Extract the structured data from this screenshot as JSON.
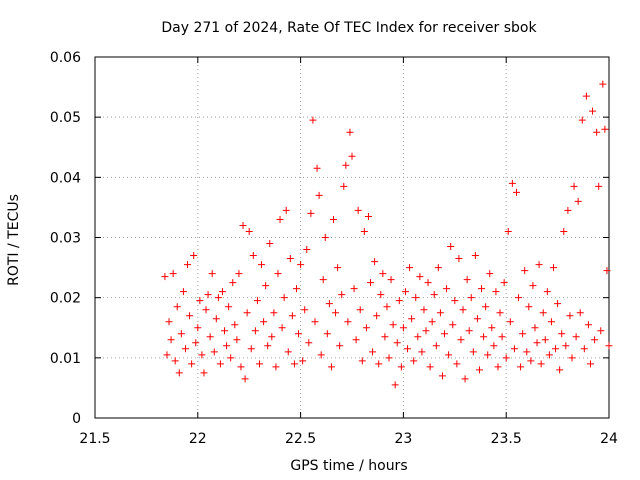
{
  "chart_data": {
    "type": "scatter",
    "title": "Day 271 of 2024, Rate Of TEC Index for receiver sbok",
    "xlabel": "GPS time / hours",
    "ylabel": "ROTI / TECUs",
    "xlim": [
      21.5,
      24
    ],
    "ylim": [
      0,
      0.06
    ],
    "xticks": [
      21.5,
      22,
      22.5,
      23,
      23.5,
      24
    ],
    "xtick_labels": [
      "21.5",
      "22",
      "22.5",
      "23",
      "23.5",
      "24"
    ],
    "yticks": [
      0,
      0.01,
      0.02,
      0.03,
      0.04,
      0.05,
      0.06
    ],
    "ytick_labels": [
      "0",
      "0.01",
      "0.02",
      "0.03",
      "0.04",
      "0.05",
      "0.06"
    ],
    "grid": true,
    "marker": "plus",
    "color": "#ff0000",
    "series": [
      {
        "name": "ROTI",
        "points": [
          [
            21.84,
            0.0235
          ],
          [
            21.85,
            0.0105
          ],
          [
            21.86,
            0.016
          ],
          [
            21.87,
            0.013
          ],
          [
            21.88,
            0.024
          ],
          [
            21.89,
            0.0095
          ],
          [
            21.9,
            0.0185
          ],
          [
            21.91,
            0.0075
          ],
          [
            21.92,
            0.014
          ],
          [
            21.93,
            0.021
          ],
          [
            21.94,
            0.0115
          ],
          [
            21.95,
            0.0255
          ],
          [
            21.96,
            0.017
          ],
          [
            21.97,
            0.009
          ],
          [
            21.98,
            0.027
          ],
          [
            21.99,
            0.0125
          ],
          [
            22.0,
            0.015
          ],
          [
            22.01,
            0.0195
          ],
          [
            22.02,
            0.0105
          ],
          [
            22.03,
            0.0075
          ],
          [
            22.04,
            0.018
          ],
          [
            22.05,
            0.0205
          ],
          [
            22.06,
            0.0135
          ],
          [
            22.07,
            0.024
          ],
          [
            22.08,
            0.011
          ],
          [
            22.09,
            0.0165
          ],
          [
            22.1,
            0.02
          ],
          [
            22.11,
            0.009
          ],
          [
            22.12,
            0.021
          ],
          [
            22.13,
            0.0145
          ],
          [
            22.14,
            0.012
          ],
          [
            22.15,
            0.0185
          ],
          [
            22.16,
            0.01
          ],
          [
            22.17,
            0.0225
          ],
          [
            22.18,
            0.0155
          ],
          [
            22.19,
            0.013
          ],
          [
            22.2,
            0.024
          ],
          [
            22.21,
            0.0085
          ],
          [
            22.22,
            0.032
          ],
          [
            22.23,
            0.0065
          ],
          [
            22.24,
            0.0175
          ],
          [
            22.25,
            0.031
          ],
          [
            22.26,
            0.0115
          ],
          [
            22.27,
            0.027
          ],
          [
            22.28,
            0.0145
          ],
          [
            22.29,
            0.0195
          ],
          [
            22.3,
            0.009
          ],
          [
            22.31,
            0.0255
          ],
          [
            22.32,
            0.016
          ],
          [
            22.33,
            0.022
          ],
          [
            22.34,
            0.012
          ],
          [
            22.35,
            0.029
          ],
          [
            22.36,
            0.0135
          ],
          [
            22.37,
            0.0175
          ],
          [
            22.38,
            0.0085
          ],
          [
            22.39,
            0.024
          ],
          [
            22.4,
            0.033
          ],
          [
            22.41,
            0.015
          ],
          [
            22.42,
            0.02
          ],
          [
            22.43,
            0.0345
          ],
          [
            22.44,
            0.011
          ],
          [
            22.45,
            0.0265
          ],
          [
            22.46,
            0.017
          ],
          [
            22.47,
            0.009
          ],
          [
            22.48,
            0.0215
          ],
          [
            22.49,
            0.014
          ],
          [
            22.5,
            0.0255
          ],
          [
            22.51,
            0.0095
          ],
          [
            22.52,
            0.018
          ],
          [
            22.53,
            0.028
          ],
          [
            22.54,
            0.0125
          ],
          [
            22.55,
            0.034
          ],
          [
            22.56,
            0.0495
          ],
          [
            22.57,
            0.016
          ],
          [
            22.58,
            0.0415
          ],
          [
            22.59,
            0.037
          ],
          [
            22.6,
            0.0105
          ],
          [
            22.61,
            0.023
          ],
          [
            22.62,
            0.03
          ],
          [
            22.63,
            0.014
          ],
          [
            22.64,
            0.019
          ],
          [
            22.65,
            0.0085
          ],
          [
            22.66,
            0.033
          ],
          [
            22.67,
            0.0175
          ],
          [
            22.68,
            0.025
          ],
          [
            22.69,
            0.012
          ],
          [
            22.7,
            0.0205
          ],
          [
            22.71,
            0.0385
          ],
          [
            22.72,
            0.042
          ],
          [
            22.73,
            0.016
          ],
          [
            22.74,
            0.0475
          ],
          [
            22.75,
            0.0435
          ],
          [
            22.76,
            0.0215
          ],
          [
            22.77,
            0.013
          ],
          [
            22.78,
            0.0345
          ],
          [
            22.79,
            0.018
          ],
          [
            22.8,
            0.0095
          ],
          [
            22.81,
            0.031
          ],
          [
            22.82,
            0.015
          ],
          [
            22.83,
            0.0335
          ],
          [
            22.84,
            0.0225
          ],
          [
            22.85,
            0.011
          ],
          [
            22.86,
            0.026
          ],
          [
            22.87,
            0.017
          ],
          [
            22.88,
            0.009
          ],
          [
            22.89,
            0.0205
          ],
          [
            22.9,
            0.024
          ],
          [
            22.91,
            0.0135
          ],
          [
            22.92,
            0.0185
          ],
          [
            22.93,
            0.01
          ],
          [
            22.94,
            0.023
          ],
          [
            22.95,
            0.0155
          ],
          [
            22.96,
            0.0055
          ],
          [
            22.97,
            0.0125
          ],
          [
            22.98,
            0.0195
          ],
          [
            22.99,
            0.0085
          ],
          [
            23.0,
            0.015
          ],
          [
            23.01,
            0.021
          ],
          [
            23.02,
            0.0115
          ],
          [
            23.03,
            0.025
          ],
          [
            23.04,
            0.0165
          ],
          [
            23.05,
            0.0095
          ],
          [
            23.06,
            0.02
          ],
          [
            23.07,
            0.0135
          ],
          [
            23.08,
            0.0235
          ],
          [
            23.09,
            0.011
          ],
          [
            23.1,
            0.018
          ],
          [
            23.11,
            0.0145
          ],
          [
            23.12,
            0.0225
          ],
          [
            23.13,
            0.0085
          ],
          [
            23.14,
            0.016
          ],
          [
            23.15,
            0.0205
          ],
          [
            23.16,
            0.012
          ],
          [
            23.17,
            0.025
          ],
          [
            23.18,
            0.0175
          ],
          [
            23.19,
            0.007
          ],
          [
            23.2,
            0.014
          ],
          [
            23.21,
            0.0215
          ],
          [
            23.22,
            0.0105
          ],
          [
            23.23,
            0.0285
          ],
          [
            23.24,
            0.0155
          ],
          [
            23.25,
            0.0195
          ],
          [
            23.26,
            0.009
          ],
          [
            23.27,
            0.0265
          ],
          [
            23.28,
            0.013
          ],
          [
            23.29,
            0.018
          ],
          [
            23.3,
            0.0065
          ],
          [
            23.31,
            0.023
          ],
          [
            23.32,
            0.0145
          ],
          [
            23.33,
            0.02
          ],
          [
            23.34,
            0.011
          ],
          [
            23.35,
            0.027
          ],
          [
            23.36,
            0.0165
          ],
          [
            23.37,
            0.008
          ],
          [
            23.38,
            0.0215
          ],
          [
            23.39,
            0.0135
          ],
          [
            23.4,
            0.0185
          ],
          [
            23.41,
            0.0105
          ],
          [
            23.42,
            0.024
          ],
          [
            23.43,
            0.015
          ],
          [
            23.44,
            0.012
          ],
          [
            23.45,
            0.021
          ],
          [
            23.46,
            0.0085
          ],
          [
            23.47,
            0.0175
          ],
          [
            23.48,
            0.0135
          ],
          [
            23.49,
            0.0225
          ],
          [
            23.5,
            0.01
          ],
          [
            23.51,
            0.031
          ],
          [
            23.52,
            0.016
          ],
          [
            23.53,
            0.039
          ],
          [
            23.54,
            0.0115
          ],
          [
            23.55,
            0.0375
          ],
          [
            23.56,
            0.02
          ],
          [
            23.57,
            0.0085
          ],
          [
            23.58,
            0.014
          ],
          [
            23.59,
            0.0245
          ],
          [
            23.6,
            0.011
          ],
          [
            23.61,
            0.0185
          ],
          [
            23.62,
            0.0095
          ],
          [
            23.63,
            0.022
          ],
          [
            23.64,
            0.015
          ],
          [
            23.65,
            0.0125
          ],
          [
            23.66,
            0.0255
          ],
          [
            23.67,
            0.009
          ],
          [
            23.68,
            0.0175
          ],
          [
            23.69,
            0.013
          ],
          [
            23.7,
            0.021
          ],
          [
            23.71,
            0.0105
          ],
          [
            23.72,
            0.016
          ],
          [
            23.73,
            0.025
          ],
          [
            23.74,
            0.0115
          ],
          [
            23.75,
            0.019
          ],
          [
            23.76,
            0.008
          ],
          [
            23.77,
            0.014
          ],
          [
            23.78,
            0.031
          ],
          [
            23.79,
            0.012
          ],
          [
            23.8,
            0.0345
          ],
          [
            23.81,
            0.017
          ],
          [
            23.82,
            0.01
          ],
          [
            23.83,
            0.0385
          ],
          [
            23.84,
            0.0135
          ],
          [
            23.85,
            0.036
          ],
          [
            23.86,
            0.0175
          ],
          [
            23.87,
            0.0495
          ],
          [
            23.88,
            0.0115
          ],
          [
            23.89,
            0.0535
          ],
          [
            23.9,
            0.0155
          ],
          [
            23.91,
            0.009
          ],
          [
            23.92,
            0.051
          ],
          [
            23.93,
            0.013
          ],
          [
            23.94,
            0.0475
          ],
          [
            23.95,
            0.0385
          ],
          [
            23.96,
            0.0145
          ],
          [
            23.97,
            0.0555
          ],
          [
            23.98,
            0.048
          ],
          [
            23.99,
            0.0245
          ],
          [
            24.0,
            0.012
          ]
        ]
      }
    ]
  }
}
